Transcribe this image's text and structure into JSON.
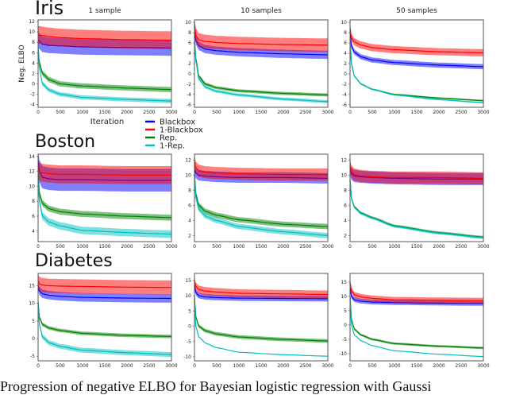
{
  "figure": {
    "row_titles": [
      "Iris",
      "Boston",
      "Diabetes"
    ],
    "column_titles": [
      "1 sample",
      "10 samples",
      "50 samples"
    ],
    "ylabel": "Neg. ELBO",
    "xlabel": "Iteration",
    "caption": "Progression of negative ELBO for Bayesian logistic regression with Gaussi"
  },
  "legend": {
    "placement": "between first and second row, left-center",
    "items": [
      {
        "name": "Blackbox",
        "color": "#0000ff"
      },
      {
        "name": "1-Blackbox",
        "color": "#ff0000"
      },
      {
        "name": "Rep.",
        "color": "#008000"
      },
      {
        "name": "1-Rep.",
        "color": "#00bfbf"
      }
    ]
  },
  "chart_data": [
    {
      "type": "line",
      "dataset": "Iris",
      "samples": "1 sample",
      "x": [
        0,
        30,
        100,
        250,
        500,
        1000,
        2000,
        3000
      ],
      "xlim": [
        0,
        3000
      ],
      "xticks": [
        "0",
        "500",
        "1000",
        "1500",
        "2000",
        "2500",
        "3000"
      ],
      "ylim": [
        -4.5,
        12.3
      ],
      "yticks": [
        "-4",
        "-2",
        "0",
        "2",
        "4",
        "6",
        "8",
        "10",
        "12"
      ],
      "grid": false,
      "series": [
        {
          "name": "Blackbox",
          "mean": [
            8.5,
            8.2,
            7.6,
            7.4,
            7.3,
            7.1,
            7.0,
            6.9
          ],
          "band": 1.5
        },
        {
          "name": "1-Blackbox",
          "mean": [
            9.4,
            9.4,
            9.3,
            9.1,
            8.9,
            8.7,
            8.5,
            8.4
          ],
          "band": 1.7
        },
        {
          "name": "Rep.",
          "mean": [
            7,
            4,
            2,
            0.8,
            0,
            -0.4,
            -0.8,
            -1.1
          ],
          "band": 0.5
        },
        {
          "name": "1-Rep.",
          "mean": [
            7,
            3,
            0,
            -1.2,
            -2,
            -2.6,
            -3,
            -3.3
          ],
          "band": 0.4
        }
      ]
    },
    {
      "type": "line",
      "dataset": "Iris",
      "samples": "10 samples",
      "x": [
        0,
        30,
        100,
        250,
        500,
        1000,
        2000,
        3000
      ],
      "xlim": [
        0,
        3000
      ],
      "xticks": [
        "0",
        "500",
        "1000",
        "1500",
        "2000",
        "2500",
        "3000"
      ],
      "ylim": [
        -6.5,
        10.5
      ],
      "yticks": [
        "-6",
        "-4",
        "-2",
        "0",
        "2",
        "4",
        "6",
        "8",
        "10"
      ],
      "grid": false,
      "series": [
        {
          "name": "Blackbox",
          "mean": [
            8.2,
            6.5,
            5.4,
            4.8,
            4.5,
            4.2,
            3.9,
            3.7
          ],
          "band": 0.8
        },
        {
          "name": "1-Blackbox",
          "mean": [
            9.8,
            7.5,
            6.6,
            6.3,
            6.1,
            5.9,
            5.7,
            5.6
          ],
          "band": 1.3
        },
        {
          "name": "Rep.",
          "mean": [
            7,
            3,
            -0.5,
            -2,
            -2.7,
            -3.3,
            -3.8,
            -4.1
          ],
          "band": 0.3
        },
        {
          "name": "1-Rep.",
          "mean": [
            7,
            2.5,
            -1,
            -2.6,
            -3.4,
            -4.1,
            -4.9,
            -5.4
          ],
          "band": 0.3
        }
      ]
    },
    {
      "type": "line",
      "dataset": "Iris",
      "samples": "50 samples",
      "x": [
        0,
        30,
        100,
        250,
        500,
        1000,
        2000,
        3000
      ],
      "xlim": [
        0,
        3000
      ],
      "xticks": [
        "0",
        "500",
        "1000",
        "1500",
        "2000",
        "2500",
        "3000"
      ],
      "ylim": [
        -6.5,
        10.5
      ],
      "yticks": [
        "-6",
        "-4",
        "-2",
        "0",
        "2",
        "4",
        "6",
        "8",
        "10"
      ],
      "grid": false,
      "series": [
        {
          "name": "Blackbox",
          "mean": [
            8.5,
            5.5,
            4.2,
            3.3,
            2.7,
            2.2,
            1.7,
            1.4
          ],
          "band": 0.5
        },
        {
          "name": "1-Blackbox",
          "mean": [
            9,
            7,
            6.2,
            5.6,
            5.1,
            4.7,
            4.3,
            4.1
          ],
          "band": 0.7
        },
        {
          "name": "Rep.",
          "mean": [
            7,
            2,
            -0.5,
            -2,
            -3,
            -4,
            -4.7,
            -5.2
          ],
          "band": 0.15
        },
        {
          "name": "1-Rep.",
          "mean": [
            7,
            2,
            -0.5,
            -2,
            -3,
            -4.1,
            -5,
            -5.6
          ],
          "band": 0.15
        }
      ]
    },
    {
      "type": "line",
      "dataset": "Boston",
      "samples": "1 sample",
      "x": [
        0,
        30,
        100,
        250,
        500,
        1000,
        2000,
        3000
      ],
      "xlim": [
        0,
        3000
      ],
      "xticks": [
        "0",
        "500",
        "1000",
        "1500",
        "2000",
        "2500",
        "3000"
      ],
      "ylim": [
        2.6,
        14.3
      ],
      "yticks": [
        "4",
        "6",
        "8",
        "10",
        "12",
        "14"
      ],
      "grid": false,
      "series": [
        {
          "name": "Blackbox",
          "mean": [
            13.4,
            12,
            11.2,
            11,
            10.9,
            10.9,
            10.8,
            10.8
          ],
          "band": 1.5
        },
        {
          "name": "1-Blackbox",
          "mean": [
            12.5,
            11.9,
            11.8,
            11.7,
            11.6,
            11.6,
            11.5,
            11.5
          ],
          "band": 1.2
        },
        {
          "name": "Rep.",
          "mean": [
            12,
            9,
            7.7,
            7,
            6.6,
            6.3,
            6,
            5.8
          ],
          "band": 0.4
        },
        {
          "name": "1-Rep.",
          "mean": [
            11,
            8,
            6,
            5.2,
            4.7,
            4.1,
            3.8,
            3.6
          ],
          "band": 0.5
        }
      ]
    },
    {
      "type": "line",
      "dataset": "Boston",
      "samples": "10 samples",
      "x": [
        0,
        30,
        100,
        250,
        500,
        1000,
        2000,
        3000
      ],
      "xlim": [
        0,
        3000
      ],
      "xticks": [
        "0",
        "500",
        "1000",
        "1500",
        "2000",
        "2500",
        "3000"
      ],
      "ylim": [
        1.2,
        12.8
      ],
      "yticks": [
        "2",
        "4",
        "6",
        "8",
        "10",
        "12"
      ],
      "grid": false,
      "series": [
        {
          "name": "Blackbox",
          "mean": [
            10.9,
            10.3,
            10,
            9.9,
            9.8,
            9.7,
            9.7,
            9.6
          ],
          "band": 0.7
        },
        {
          "name": "1-Blackbox",
          "mean": [
            12,
            11,
            10.6,
            10.4,
            10.3,
            10.2,
            10.1,
            10.1
          ],
          "band": 0.8
        },
        {
          "name": "Rep.",
          "mean": [
            10.5,
            7.5,
            6,
            5.2,
            4.7,
            4.1,
            3.5,
            3.2
          ],
          "band": 0.35
        },
        {
          "name": "1-Rep.",
          "mean": [
            10,
            7,
            5.5,
            4.6,
            4,
            3.2,
            2.5,
            2
          ],
          "band": 0.35
        }
      ]
    },
    {
      "type": "line",
      "dataset": "Boston",
      "samples": "50 samples",
      "x": [
        0,
        30,
        100,
        250,
        500,
        1000,
        2000,
        3000
      ],
      "xlim": [
        0,
        3000
      ],
      "xticks": [
        "0",
        "500",
        "1000",
        "1500",
        "2000",
        "2500",
        "3000"
      ],
      "ylim": [
        1.2,
        12.8
      ],
      "yticks": [
        "2",
        "4",
        "6",
        "8",
        "10",
        "12"
      ],
      "grid": false,
      "series": [
        {
          "name": "Blackbox",
          "mean": [
            10.8,
            10.2,
            9.9,
            9.8,
            9.7,
            9.6,
            9.5,
            9.5
          ],
          "band": 0.8
        },
        {
          "name": "1-Blackbox",
          "mean": [
            11.5,
            10.5,
            10.1,
            9.9,
            9.8,
            9.7,
            9.7,
            9.6
          ],
          "band": 0.8
        },
        {
          "name": "Rep.",
          "mean": [
            9.5,
            7,
            5.8,
            5,
            4.4,
            3.3,
            2.4,
            1.8
          ],
          "band": 0.15
        },
        {
          "name": "1-Rep.",
          "mean": [
            9.4,
            6.9,
            5.7,
            4.9,
            4.3,
            3.2,
            2.3,
            1.7
          ],
          "band": 0.15
        }
      ]
    },
    {
      "type": "line",
      "dataset": "Diabetes",
      "samples": "1 sample",
      "x": [
        0,
        30,
        100,
        250,
        500,
        1000,
        2000,
        3000
      ],
      "xlim": [
        0,
        3000
      ],
      "xticks": [
        "0",
        "500",
        "1000",
        "1500",
        "2000",
        "2500",
        "3000"
      ],
      "ylim": [
        -6.3,
        18.5
      ],
      "yticks": [
        "-5",
        "0",
        "5",
        "10",
        "15"
      ],
      "grid": false,
      "series": [
        {
          "name": "Blackbox",
          "mean": [
            15,
            13.5,
            12.7,
            12.3,
            12,
            11.7,
            11.5,
            11.4
          ],
          "band": 1.2
        },
        {
          "name": "1-Blackbox",
          "mean": [
            16.5,
            15.5,
            15.2,
            15,
            14.9,
            14.8,
            14.6,
            14.5
          ],
          "band": 2
        },
        {
          "name": "Rep.",
          "mean": [
            10.5,
            6,
            4,
            3,
            2.3,
            1.5,
            0.9,
            0.6
          ],
          "band": 0.5
        },
        {
          "name": "1-Rep.",
          "mean": [
            10,
            4,
            0.5,
            -1.2,
            -2.2,
            -3.3,
            -4,
            -4.5
          ],
          "band": 0.7
        }
      ]
    },
    {
      "type": "line",
      "dataset": "Diabetes",
      "samples": "10 samples",
      "x": [
        0,
        30,
        100,
        250,
        500,
        1000,
        2000,
        3000
      ],
      "xlim": [
        0,
        3000
      ],
      "xticks": [
        "0",
        "500",
        "1000",
        "1500",
        "2000",
        "2500",
        "3000"
      ],
      "ylim": [
        -11.3,
        17.3
      ],
      "yticks": [
        "-10",
        "-5",
        "0",
        "5",
        "10",
        "15"
      ],
      "grid": false,
      "series": [
        {
          "name": "Blackbox",
          "mean": [
            14,
            11,
            10,
            9.6,
            9.4,
            9.2,
            9.1,
            9
          ],
          "band": 0.9
        },
        {
          "name": "1-Blackbox",
          "mean": [
            15,
            13,
            12,
            11.5,
            11.2,
            10.8,
            10.6,
            10.4
          ],
          "band": 1.3
        },
        {
          "name": "Rep.",
          "mean": [
            10,
            3,
            0,
            -1.5,
            -2.5,
            -3.5,
            -4.3,
            -4.8
          ],
          "band": 0.6
        },
        {
          "name": "1-Rep.",
          "mean": [
            9,
            0,
            -3.5,
            -5.5,
            -7,
            -8.5,
            -9.3,
            -9.8
          ],
          "band": 0.1
        }
      ]
    },
    {
      "type": "line",
      "dataset": "Diabetes",
      "samples": "50 samples",
      "x": [
        0,
        30,
        100,
        250,
        500,
        1000,
        2000,
        3000
      ],
      "xlim": [
        0,
        3000
      ],
      "xticks": [
        "0",
        "500",
        "1000",
        "1500",
        "2000",
        "2500",
        "3000"
      ],
      "ylim": [
        -12.5,
        18
      ],
      "yticks": [
        "-10",
        "-5",
        "0",
        "5",
        "10",
        "15"
      ],
      "grid": false,
      "series": [
        {
          "name": "Blackbox",
          "mean": [
            13.5,
            10,
            8.8,
            8.3,
            8,
            7.8,
            7.6,
            7.5
          ],
          "band": 0.8
        },
        {
          "name": "1-Blackbox",
          "mean": [
            15,
            12,
            10.5,
            9.8,
            9.3,
            8.8,
            8.6,
            8.5
          ],
          "band": 1
        },
        {
          "name": "Rep.",
          "mean": [
            10,
            2,
            -1.5,
            -3.5,
            -5,
            -6.5,
            -7.4,
            -8
          ],
          "band": 0.4
        },
        {
          "name": "1-Rep.",
          "mean": [
            9,
            0,
            -3.5,
            -5.5,
            -7.2,
            -9,
            -10.2,
            -11
          ],
          "band": 0.1
        }
      ]
    }
  ]
}
